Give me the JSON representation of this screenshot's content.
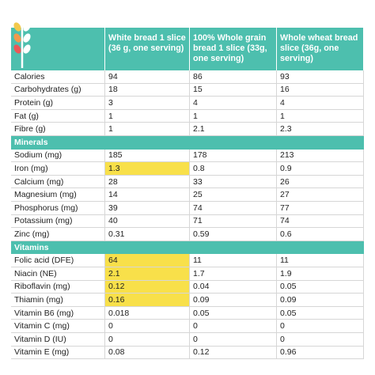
{
  "table": {
    "header": [
      "White bread 1 slice (36 g, one serving)",
      "100% Whole grain bread 1 slice (33g, one serving)",
      "Whole wheat bread slice (36g, one serving)"
    ],
    "header_color": "#4dbfae",
    "highlight_color": "#f8e04a",
    "rows": [
      {
        "label": "Calories",
        "values": [
          "94",
          "86",
          "93"
        ]
      },
      {
        "label": "Carbohydrates (g)",
        "values": [
          "18",
          "15",
          "16"
        ]
      },
      {
        "label": "Protein (g)",
        "values": [
          "3",
          "4",
          "4"
        ]
      },
      {
        "label": "Fat (g)",
        "values": [
          "1",
          "1",
          "1"
        ]
      },
      {
        "label": "Fibre (g)",
        "values": [
          "1",
          "2.1",
          "2.3"
        ]
      },
      {
        "section": "Minerals"
      },
      {
        "label": "Sodium (mg)",
        "values": [
          "185",
          "178",
          "213"
        ]
      },
      {
        "label": "Iron (mg)",
        "values": [
          "1.3",
          "0.8",
          "0.9"
        ],
        "highlight": [
          0
        ]
      },
      {
        "label": "Calcium (mg)",
        "values": [
          "28",
          "33",
          "26"
        ]
      },
      {
        "label": "Magnesium (mg)",
        "values": [
          "14",
          "25",
          "27"
        ]
      },
      {
        "label": "Phosphorus (mg)",
        "values": [
          "39",
          "74",
          "77"
        ]
      },
      {
        "label": "Potassium (mg)",
        "values": [
          "40",
          "71",
          "74"
        ]
      },
      {
        "label": "Zinc (mg)",
        "values": [
          "0.31",
          "0.59",
          "0.6"
        ]
      },
      {
        "section": "Vitamins"
      },
      {
        "label": "Folic acid (DFE)",
        "values": [
          "64",
          "11",
          "11"
        ],
        "highlight": [
          0
        ]
      },
      {
        "label": "Niacin (NE)",
        "values": [
          "2.1",
          "1.7",
          "1.9"
        ],
        "highlight": [
          0
        ]
      },
      {
        "label": "Riboflavin (mg)",
        "values": [
          "0.12",
          "0.04",
          "0.05"
        ],
        "highlight": [
          0
        ]
      },
      {
        "label": "Thiamin (mg)",
        "values": [
          "0.16",
          "0.09",
          "0.09"
        ],
        "highlight": [
          0
        ]
      },
      {
        "label": "Vitamin B6 (mg)",
        "values": [
          "0.018",
          "0.05",
          "0.05"
        ]
      },
      {
        "label": "Vitamin C (mg)",
        "values": [
          "0",
          "0",
          "0"
        ]
      },
      {
        "label": "Vitamin D (IU)",
        "values": [
          "0",
          "0",
          "0"
        ]
      },
      {
        "label": "Vitamin E (mg)",
        "values": [
          "0.08",
          "0.12",
          "0.96"
        ]
      }
    ]
  }
}
